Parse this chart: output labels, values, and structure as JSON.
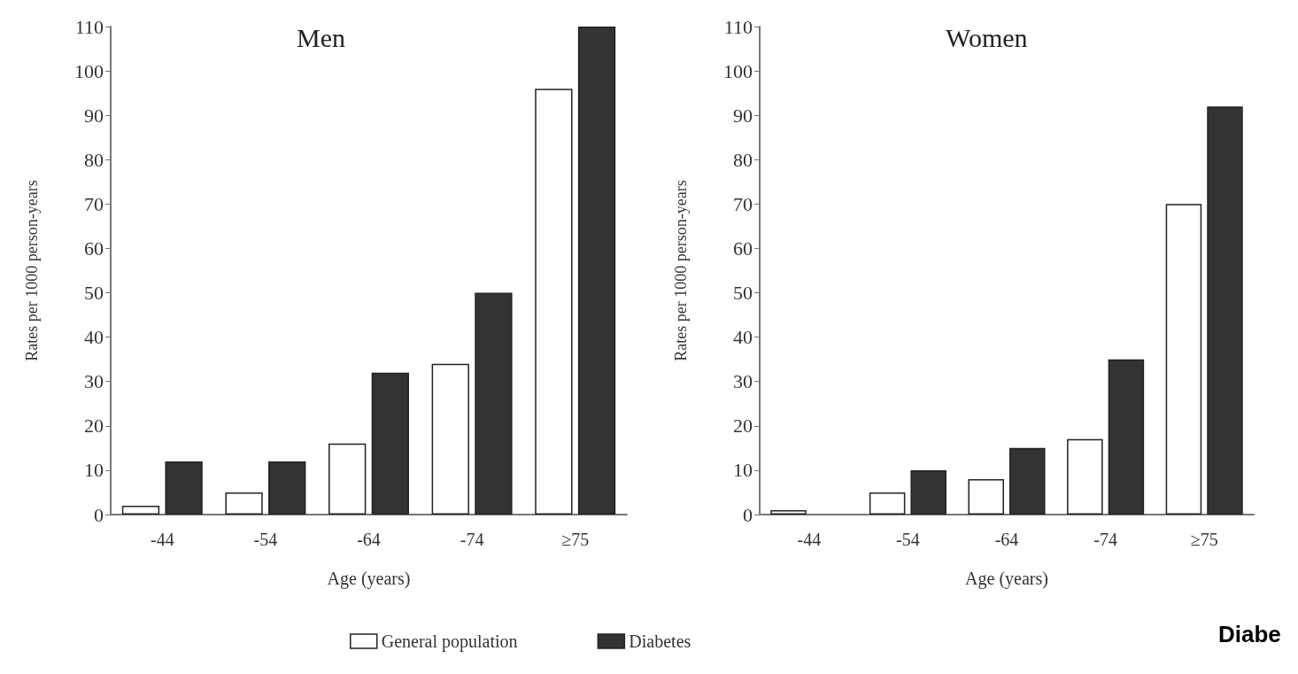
{
  "chart_data": [
    {
      "type": "bar",
      "title": "Men",
      "xlabel": "Age (years)",
      "ylabel": "Rates per 1000 person-years",
      "categories": [
        "-44",
        "-54",
        "-64",
        "-74",
        "≥75"
      ],
      "series": [
        {
          "name": "General population",
          "color": "#ffffff",
          "values": [
            2,
            5,
            16,
            34,
            96
          ]
        },
        {
          "name": "Diabetes",
          "color": "#333333",
          "values": [
            12,
            12,
            32,
            50,
            110
          ]
        }
      ],
      "ylim": [
        0,
        110
      ],
      "yticks": [
        0,
        10,
        20,
        30,
        40,
        50,
        60,
        70,
        80,
        90,
        100,
        110
      ],
      "grid": false,
      "legend": "bottom"
    },
    {
      "type": "bar",
      "title": "Women",
      "xlabel": "Age (years)",
      "ylabel": "Rates per 1000 person-years",
      "categories": [
        "-44",
        "-54",
        "-64",
        "-74",
        "≥75"
      ],
      "series": [
        {
          "name": "General population",
          "color": "#ffffff",
          "values": [
            1,
            5,
            8,
            17,
            70
          ]
        },
        {
          "name": "Diabetes",
          "color": "#333333",
          "values": [
            null,
            10,
            15,
            35,
            92
          ]
        }
      ],
      "ylim": [
        0,
        110
      ],
      "yticks": [
        0,
        10,
        20,
        30,
        40,
        50,
        60,
        70,
        80,
        90,
        100,
        110
      ],
      "grid": false,
      "legend": false,
      "annotations": [
        "Diabe"
      ]
    }
  ]
}
